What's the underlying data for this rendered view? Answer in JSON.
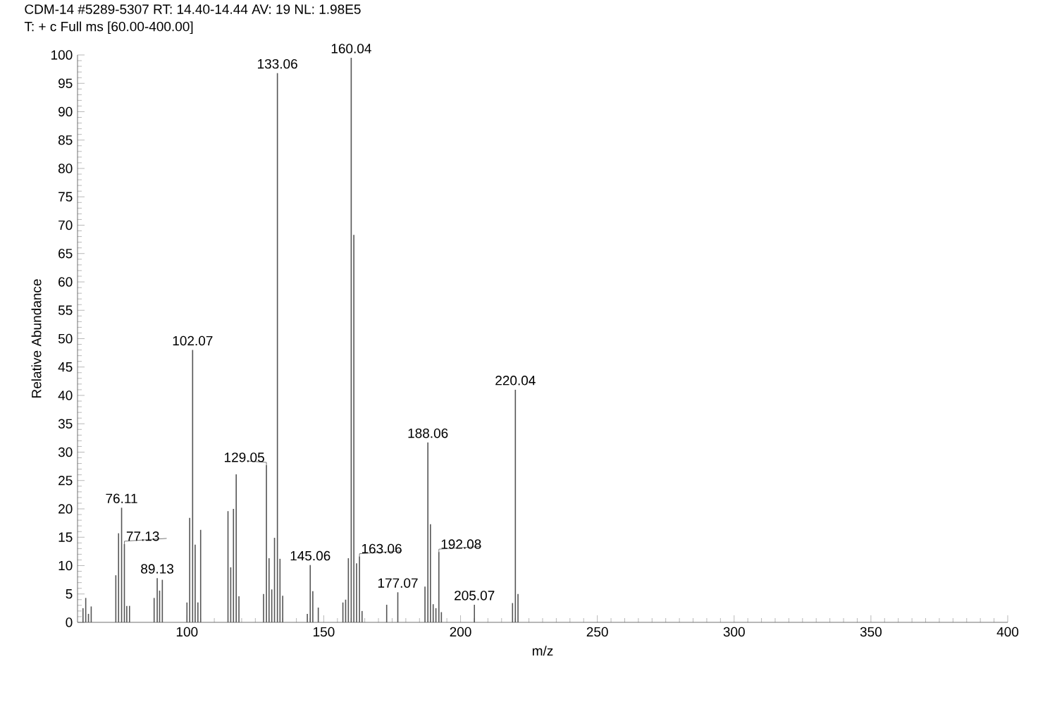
{
  "chart_data": {
    "type": "bar",
    "title": "CDM-14 #5289-5307   RT: 14.40-14.44   AV: 19   NL: 1.98E5",
    "subtitle": "T: + c Full ms [60.00-400.00]",
    "xlabel": "m/z",
    "ylabel": "Relative Abundance",
    "x": [
      62,
      63,
      64,
      65,
      74,
      75,
      76.11,
      77.13,
      78,
      79,
      88,
      89.13,
      90,
      91,
      100,
      101,
      102.07,
      103,
      104,
      105,
      115,
      116,
      117,
      118,
      119,
      128,
      129.05,
      130,
      131,
      132,
      133.06,
      134,
      135,
      144,
      145.06,
      146,
      148,
      157,
      158,
      159,
      160.04,
      161,
      162,
      163.06,
      164,
      173,
      177.07,
      187,
      188.06,
      189,
      190,
      191,
      192.08,
      193,
      205.07,
      219,
      220.04,
      221
    ],
    "values": [
      2.5,
      4.3,
      1.5,
      2.8,
      8.3,
      15.7,
      20.2,
      13.8,
      2.9,
      2.9,
      4.3,
      7.8,
      5.6,
      7.5,
      3.5,
      18.4,
      48.0,
      13.7,
      3.5,
      16.3,
      19.6,
      9.7,
      20.0,
      26.1,
      4.6,
      5.0,
      27.7,
      11.3,
      5.8,
      14.9,
      96.8,
      11.2,
      4.7,
      1.5,
      10.1,
      5.5,
      2.6,
      3.5,
      4.0,
      11.3,
      99.5,
      68.3,
      10.4,
      11.6,
      2.0,
      3.1,
      5.3,
      6.3,
      31.7,
      17.3,
      3.2,
      2.5,
      12.4,
      1.8,
      3.1,
      3.4,
      41.0,
      5.0
    ],
    "color": "#555555",
    "xlim": [
      60,
      400
    ],
    "xticks": [
      100,
      150,
      200,
      250,
      300,
      350,
      400
    ],
    "ylim": [
      0,
      100
    ],
    "yticks": [
      0,
      5,
      10,
      15,
      20,
      25,
      30,
      35,
      40,
      45,
      50,
      55,
      60,
      65,
      70,
      75,
      80,
      85,
      90,
      95,
      100
    ],
    "annotations": [
      {
        "text": "76.11",
        "x": 76.11,
        "y": 20.2
      },
      {
        "text": "77.13",
        "x": 77.13,
        "y": 13.8
      },
      {
        "text": "89.13",
        "x": 89.13,
        "y": 7.8
      },
      {
        "text": "102.07",
        "x": 102.07,
        "y": 48.0
      },
      {
        "text": "129.05",
        "x": 129.05,
        "y": 27.7
      },
      {
        "text": "133.06",
        "x": 133.06,
        "y": 96.8
      },
      {
        "text": "145.06",
        "x": 145.06,
        "y": 10.1
      },
      {
        "text": "160.04",
        "x": 160.04,
        "y": 99.5
      },
      {
        "text": "163.06",
        "x": 163.06,
        "y": 11.6
      },
      {
        "text": "177.07",
        "x": 177.07,
        "y": 5.3
      },
      {
        "text": "188.06",
        "x": 188.06,
        "y": 31.7
      },
      {
        "text": "192.08",
        "x": 192.08,
        "y": 12.4
      },
      {
        "text": "205.07",
        "x": 205.07,
        "y": 3.1
      },
      {
        "text": "220.04",
        "x": 220.04,
        "y": 41.0
      }
    ]
  }
}
